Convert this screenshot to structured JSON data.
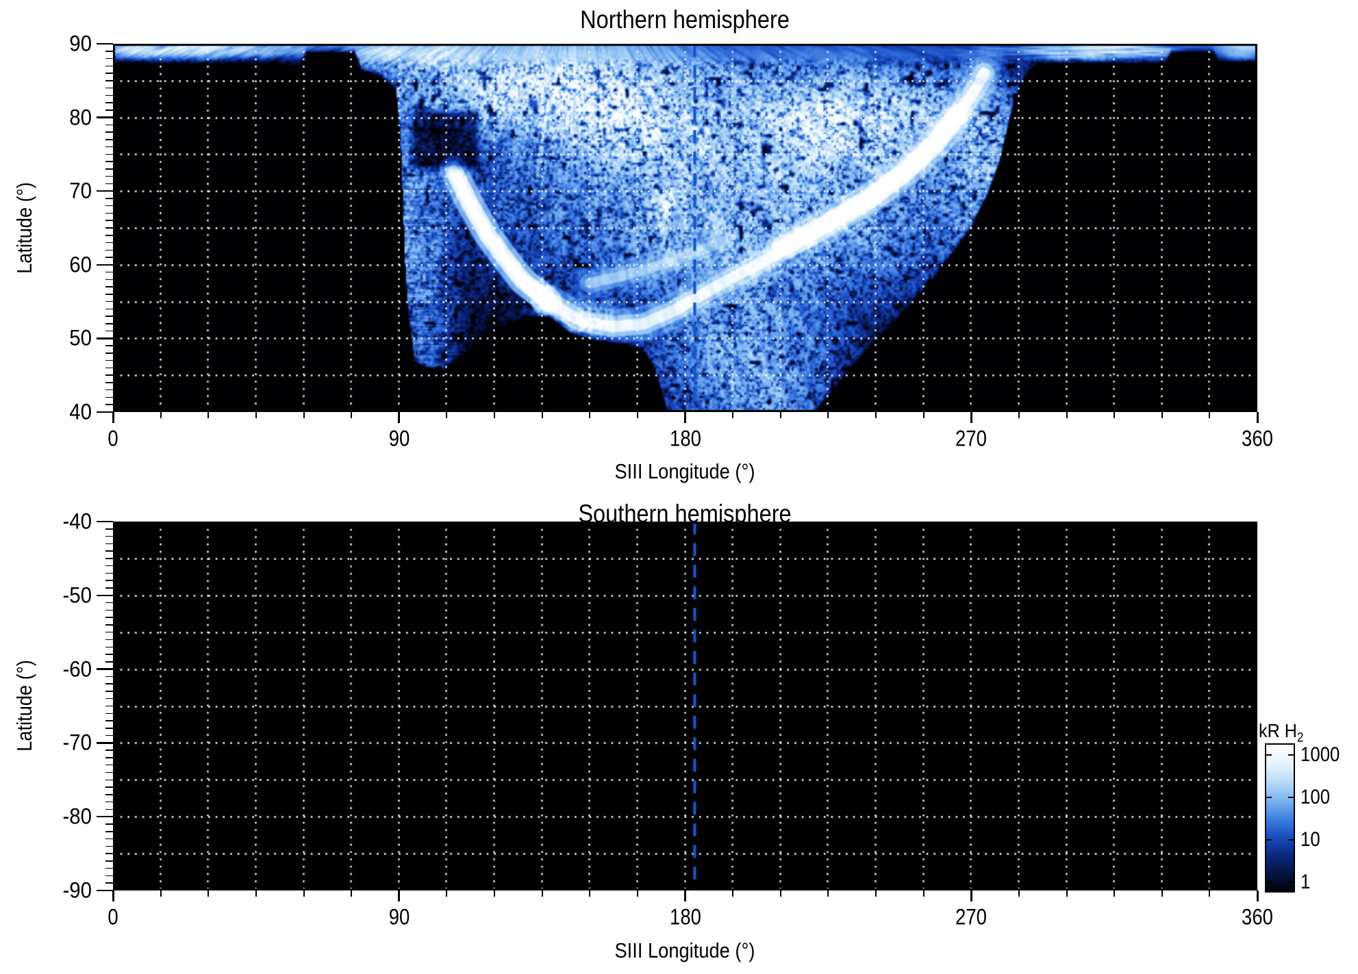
{
  "figure": {
    "background": "#ffffff",
    "kind": "two-panel auroral emission map"
  },
  "axes": {
    "xlabel": "SIII Longitude (°)",
    "ylabel": "Latitude (°)"
  },
  "colorbar": {
    "unit_main": "kR H",
    "unit_sub": "2",
    "tick_labels": [
      "1000",
      "100",
      "10",
      "1"
    ],
    "tick_values": [
      1000,
      100,
      10,
      1
    ],
    "gradient_bottom_to_top": [
      "#010208",
      "#061442",
      "#0b2a83",
      "#1a4fc0",
      "#3f83e2",
      "#7fb5ef",
      "#b9dbf7",
      "#e8f4fd",
      "#ffffff"
    ]
  },
  "colors": {
    "dashed_line": "#1457cf",
    "grid_dots": "#ffffff",
    "plot_background": "#000000",
    "axis": "#000000"
  },
  "chart_data": {
    "type": "heatmap",
    "unit": "kR H2",
    "intensity_scale": {
      "type": "log",
      "min": 1,
      "max": 1000
    },
    "grid": {
      "lon_step_deg": 15,
      "lat_step_deg": 5
    },
    "x_ticks": {
      "major": [
        0,
        90,
        180,
        270,
        360
      ],
      "labels": [
        "0",
        "90",
        "180",
        "270",
        "360"
      ],
      "minor_step": 15
    },
    "panels": [
      {
        "id": "north",
        "title": "Northern hemisphere",
        "lon_range": [
          0,
          360
        ],
        "lat_range": [
          40,
          90
        ],
        "y_ticks": {
          "major": [
            90,
            80,
            70,
            60,
            50,
            40
          ],
          "labels": [
            "90",
            "80",
            "70",
            "60",
            "50",
            "40"
          ],
          "minor_step": 1
        },
        "dashed_line_lon": 183,
        "has_emission": true
      },
      {
        "id": "south",
        "title": "Southern hemisphere",
        "lon_range": [
          0,
          360
        ],
        "lat_range": [
          -90,
          -40
        ],
        "y_ticks": {
          "major": [
            -40,
            -50,
            -60,
            -70,
            -80,
            -90
          ],
          "labels": [
            "-40",
            "-50",
            "-60",
            "-70",
            "-80",
            "-90"
          ],
          "minor_step": 1
        },
        "dashed_line_lon": 183,
        "has_emission": false
      }
    ],
    "north_emission": {
      "top_black_above_lat": 89.78,
      "streak_center": {
        "lon": 145,
        "lat": 103
      },
      "boundary_min_lat_by_lon": [
        [
          0,
          87.6
        ],
        [
          59,
          87.7
        ],
        [
          61,
          89.75
        ],
        [
          76,
          89.75
        ],
        [
          78,
          87.4
        ],
        [
          85,
          86.2
        ],
        [
          89,
          84.8
        ],
        [
          90.5,
          78
        ],
        [
          92,
          60
        ],
        [
          93,
          54
        ],
        [
          95,
          47.5
        ],
        [
          103,
          46.3
        ],
        [
          112,
          49
        ],
        [
          121,
          51.8
        ],
        [
          130,
          53.6
        ],
        [
          137,
          53.9
        ],
        [
          144,
          51.6
        ],
        [
          152,
          50.6
        ],
        [
          160,
          50.1
        ],
        [
          166,
          49.4
        ],
        [
          170,
          47.2
        ],
        [
          173,
          43
        ],
        [
          175,
          40
        ],
        [
          219,
          40
        ],
        [
          225,
          43
        ],
        [
          232,
          46.8
        ],
        [
          241,
          51
        ],
        [
          250,
          55
        ],
        [
          258,
          59
        ],
        [
          264,
          62.4
        ],
        [
          270,
          66
        ],
        [
          275,
          70.3
        ],
        [
          279,
          75
        ],
        [
          282,
          80.5
        ],
        [
          285,
          84.8
        ],
        [
          288,
          87
        ],
        [
          291,
          88.2
        ],
        [
          331,
          88.2
        ],
        [
          333,
          89.75
        ],
        [
          346,
          89.75
        ],
        [
          348,
          88.4
        ],
        [
          360,
          88.4
        ]
      ],
      "black_notch": {
        "lon": [
          92,
          117
        ],
        "lat": [
          72,
          82
        ]
      },
      "diffuse_components": [
        {
          "c": [
            138,
            84
          ],
          "sl": 26,
          "sp": 3.6,
          "a": 850
        },
        {
          "c": [
            160,
            78.5
          ],
          "sl": 14,
          "sp": 3.2,
          "a": 520
        },
        {
          "c": [
            185,
            71
          ],
          "sl": 40,
          "sp": 8,
          "a": 240
        },
        {
          "c": [
            226,
            74
          ],
          "sl": 26,
          "sp": 8,
          "a": 230
        },
        {
          "c": [
            237,
            80
          ],
          "sl": 24,
          "sp": 3.4,
          "a": 430
        },
        {
          "c": [
            196,
            52
          ],
          "sl": 16,
          "sp": 9,
          "a": 170
        },
        {
          "c": [
            205,
            45
          ],
          "sl": 13,
          "sp": 5.5,
          "a": 130
        },
        {
          "c": [
            95,
            60
          ],
          "sl": 6,
          "sp": 13,
          "a": 150,
          "tex": "stripe"
        },
        {
          "c": [
            273,
            72
          ],
          "sl": 5.5,
          "sp": 9,
          "a": 190,
          "tex": "stripe"
        },
        {
          "c": [
            174,
            68.2
          ],
          "sl": 1.2,
          "sp": 1.2,
          "a": 1300
        },
        {
          "c": [
            174,
            68.2
          ],
          "sl": 4,
          "sp": 3.5,
          "a": 260
        },
        {
          "c": [
            186.5,
            76
          ],
          "sl": 2,
          "sp": 1.8,
          "a": 420
        },
        {
          "c": [
            135.5,
            55.6
          ],
          "sl": 1.3,
          "sp": 1.1,
          "a": 1500
        },
        {
          "c": [
            148,
            52.3
          ],
          "sl": 6,
          "sp": 1.4,
          "a": 420
        },
        {
          "c": [
            15,
            89.3
          ],
          "sl": 26,
          "sp": 0.62,
          "a": 520,
          "tex": "chev"
        },
        {
          "c": [
            95,
            88.6
          ],
          "sl": 12,
          "sp": 1.1,
          "a": 560,
          "tex": "chev"
        },
        {
          "c": [
            310,
            89.1
          ],
          "sl": 16,
          "sp": 0.75,
          "a": 440,
          "tex": "stripe"
        },
        {
          "c": [
            355.5,
            89.3
          ],
          "sl": 4.5,
          "sp": 0.8,
          "a": 470
        }
      ],
      "bright_arcs": [
        {
          "pts": [
            [
              107,
              73
            ],
            [
              112,
              68.5
            ],
            [
              118,
              64
            ],
            [
              124,
              60.5
            ],
            [
              129,
              57.8
            ],
            [
              134,
              56.1
            ],
            [
              137,
              55
            ]
          ],
          "a": 1050,
          "w": 1.2
        },
        {
          "pts": [
            [
              137,
              55
            ],
            [
              147,
              52.4
            ],
            [
              157,
              51.6
            ],
            [
              167,
              52
            ],
            [
              177,
              53.9
            ],
            [
              188,
              56.6
            ],
            [
              200,
              59.4
            ],
            [
              212,
              62.2
            ],
            [
              224,
              65.1
            ],
            [
              236,
              68.4
            ],
            [
              247,
              71.9
            ],
            [
              257,
              75.8
            ],
            [
              265,
              79.8
            ],
            [
              271,
              83.6
            ],
            [
              274,
              86
            ]
          ],
          "a": 520,
          "w": 1.5
        },
        {
          "pts": [
            [
              150,
              57.5
            ],
            [
              163,
              58.8
            ],
            [
              177,
              60.6
            ],
            [
              192,
              63.2
            ]
          ],
          "a": 260,
          "w": 1.4
        },
        {
          "pts": [
            [
              210,
              62.6
            ],
            [
              224,
              65.5
            ],
            [
              238,
              69
            ],
            [
              250,
              72.9
            ],
            [
              259,
              76.6
            ],
            [
              266,
              80.6
            ]
          ],
          "a": 700,
          "w": 1.3
        }
      ]
    }
  }
}
